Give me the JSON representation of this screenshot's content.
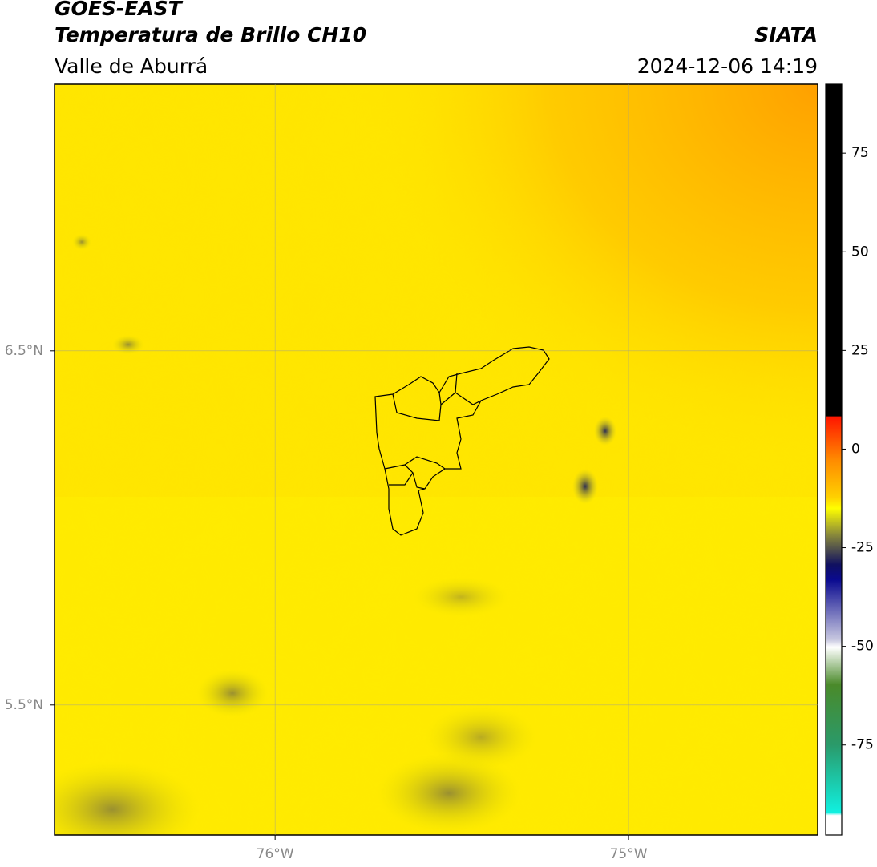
{
  "header": {
    "title": "GOES-EAST",
    "subtitle": "Temperatura de Brillo CH10",
    "source": "SIATA",
    "region": "Valle de Aburrá",
    "timestamp": "2024-12-06 14:19"
  },
  "map": {
    "xlim": [
      -76.624,
      -74.465
    ],
    "ylim": [
      5.133,
      7.253
    ],
    "xticks": [
      {
        "value": -76,
        "label": "76°W"
      },
      {
        "value": -75,
        "label": "75°W"
      }
    ],
    "yticks": [
      {
        "value": 6.5,
        "label": "6.5°N"
      },
      {
        "value": 5.5,
        "label": "5.5°N"
      }
    ]
  },
  "colorbar": {
    "lim": [
      -97.8,
      92.5
    ],
    "ticks": [
      75,
      50,
      25,
      0,
      -25,
      -50,
      -75
    ]
  }
}
